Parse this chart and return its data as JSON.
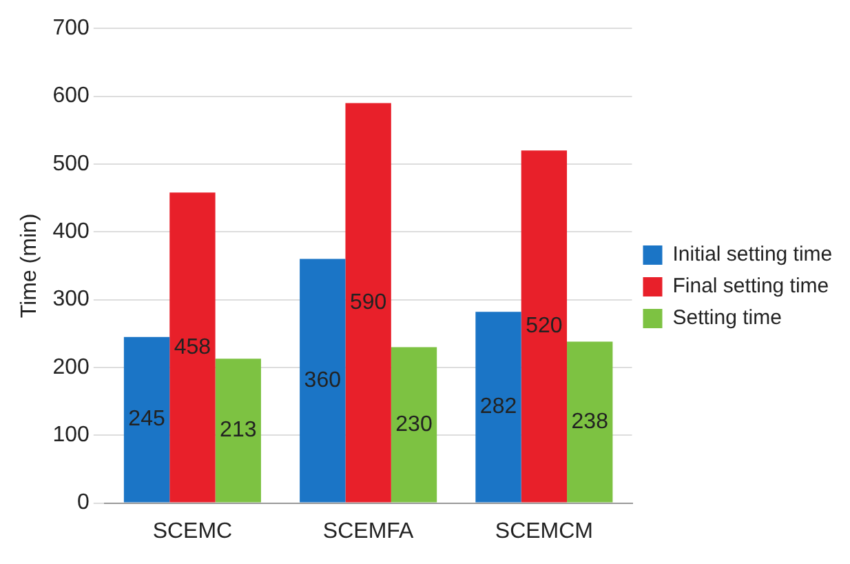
{
  "chart_data": {
    "type": "bar",
    "ylabel": "Time (min)",
    "categories": [
      "SCEMC",
      "SCEMFA",
      "SCEMCM"
    ],
    "series": [
      {
        "name": "Initial setting time",
        "color": "#1b75c6",
        "values": [
          245,
          360,
          282
        ]
      },
      {
        "name": "Final setting time",
        "color": "#e8202a",
        "values": [
          458,
          590,
          520
        ]
      },
      {
        "name": "Setting time",
        "color": "#7dc242",
        "values": [
          213,
          230,
          238
        ]
      }
    ],
    "ylim": [
      0,
      700
    ],
    "yticks": [
      0,
      100,
      200,
      300,
      400,
      500,
      600,
      700
    ],
    "grid": "y",
    "legend": "right",
    "data_labels": true
  }
}
